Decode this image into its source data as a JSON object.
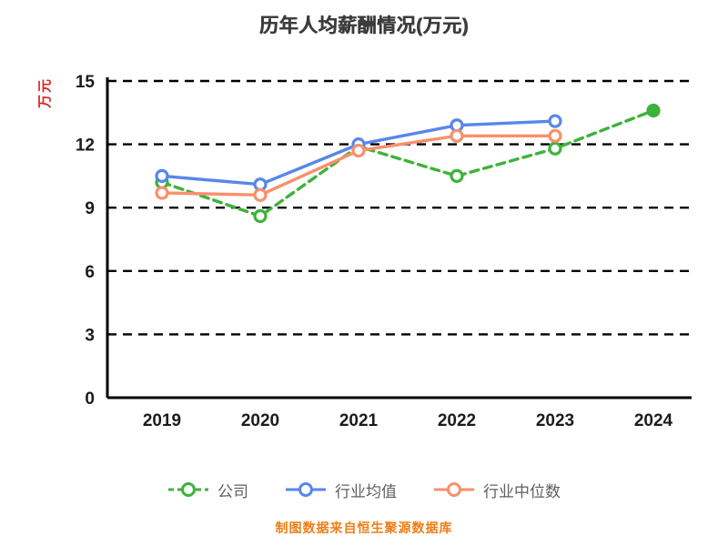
{
  "footer_text": "制图数据来自恒生聚源数据库",
  "colors": {
    "title": "#3c3c3c",
    "y_axis_title": "#dd2222",
    "footer": "#ee7e16",
    "grid": "#000000",
    "axis": "#000000",
    "tick_label": "#1c1c1c",
    "legend_label": "#606060",
    "company_green": "#3db33a",
    "industry_avg_blue": "#5887e8",
    "industry_median_orange": "#f8906c"
  },
  "chart_data": {
    "type": "line",
    "title": "历年人均薪酬情况(万元)",
    "xlabel": "",
    "ylabel": "万元",
    "categories": [
      "2019",
      "2020",
      "2021",
      "2022",
      "2023",
      "2024"
    ],
    "series": [
      {
        "name": "公司",
        "color": "#3db33a",
        "dashed": true,
        "end_marker_filled": true,
        "values": [
          10.2,
          8.6,
          11.9,
          10.5,
          11.8,
          13.6
        ]
      },
      {
        "name": "行业均值",
        "color": "#5887e8",
        "dashed": false,
        "end_marker_filled": false,
        "values": [
          10.5,
          10.1,
          12.0,
          12.9,
          13.1,
          null
        ]
      },
      {
        "name": "行业中位数",
        "color": "#f8906c",
        "dashed": false,
        "end_marker_filled": false,
        "values": [
          9.7,
          9.6,
          11.7,
          12.4,
          12.4,
          null
        ]
      }
    ],
    "ylim": [
      0,
      15
    ],
    "yticks": [
      0,
      3,
      6,
      9,
      12,
      15
    ],
    "grid": true,
    "grid_style": "dashed",
    "legend_position": "bottom"
  }
}
